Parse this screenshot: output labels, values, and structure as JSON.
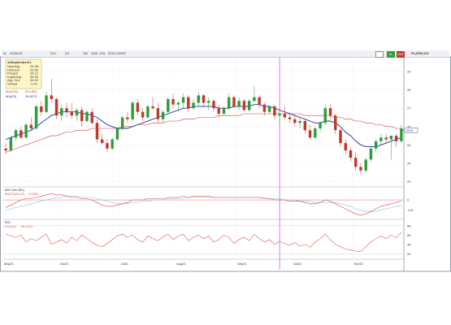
{
  "toolbar": {
    "items": [
      "M",
      "2025V21",
      "DLY",
      "3/1",
      "1/8",
      "10/8",
      "VOL",
      "ROLLOVER"
    ],
    "green_button": "AL",
    "red_button": "GAT",
    "right_label": "PLATIN-KG"
  },
  "info_box": {
    "date": "14September21",
    "rows": [
      {
        "label": "Opening",
        "value": "26.38"
      },
      {
        "label": "Hoheest",
        "value": "26.58"
      },
      {
        "label": "Fingest",
        "value": "26.12"
      },
      {
        "label": "Kapaning",
        "value": "26.30"
      },
      {
        "label": "Afg. Ord.",
        "value": "26.32"
      },
      {
        "label": "Verlust",
        "value": "-0.41"
      }
    ]
  },
  "indicators": {
    "ma_long_label": "MA(150)",
    "ma_long_value": "26.1834",
    "ma_short_label": "MA(23)",
    "ma_short_value": "26.8273",
    "macd_title": "MA Cntx (Bu)",
    "macd_label": "MACD(26,12)",
    "macd_value": "-0.1391",
    "rsi_title": "RSI",
    "rsi_label": "RSI(14)",
    "rsi_value": "60.2431"
  },
  "x_labels": [
    "May21",
    "Jun21",
    "Jul21",
    "Aug21",
    "Sep21",
    "Oct21",
    "Nov21"
  ],
  "y_price_labels": [
    "29",
    "28",
    "27",
    "26",
    "25",
    "24",
    "23"
  ],
  "last_price_label": "25.8",
  "macd_axis_labels": [
    "0",
    "-0.8"
  ],
  "rsi_axis_labels": [
    "80",
    "60",
    "40",
    "20"
  ],
  "colors": {
    "bull": "#2e9e3b",
    "bear": "#c0392b",
    "ma_short": "#1f2b9c",
    "ma_long": "#d23c3c",
    "cursor": "#b24fb8",
    "macd": "#e04848",
    "signal": "#6fd0e6",
    "rsi": "#e04848",
    "grid": "#c9d7c9"
  },
  "chart_data": {
    "type": "candlestick",
    "price_range": [
      22.8,
      29.8
    ],
    "candles": [
      [
        24.8,
        25.1,
        24.5,
        24.7
      ],
      [
        24.7,
        25.5,
        24.6,
        25.4
      ],
      [
        25.4,
        25.9,
        25.2,
        25.8
      ],
      [
        25.8,
        26.0,
        25.3,
        25.4
      ],
      [
        25.4,
        26.2,
        25.3,
        26.1
      ],
      [
        26.1,
        26.5,
        25.8,
        25.9
      ],
      [
        25.9,
        27.2,
        25.8,
        27.1
      ],
      [
        27.1,
        27.4,
        26.6,
        26.8
      ],
      [
        26.8,
        27.9,
        26.7,
        27.7
      ],
      [
        27.7,
        28.6,
        27.3,
        27.5
      ],
      [
        27.5,
        27.6,
        26.4,
        26.6
      ],
      [
        26.6,
        27.2,
        26.3,
        27.0
      ],
      [
        27.0,
        27.3,
        26.5,
        26.8
      ],
      [
        26.8,
        27.3,
        26.4,
        26.6
      ],
      [
        26.6,
        27.0,
        26.3,
        26.9
      ],
      [
        26.9,
        27.1,
        26.0,
        26.3
      ],
      [
        26.3,
        26.9,
        26.2,
        26.8
      ],
      [
        26.8,
        27.0,
        26.1,
        26.2
      ],
      [
        26.2,
        26.4,
        25.1,
        25.3
      ],
      [
        25.3,
        25.6,
        25.0,
        25.1
      ],
      [
        25.1,
        25.3,
        24.6,
        24.8
      ],
      [
        24.8,
        25.4,
        24.7,
        25.3
      ],
      [
        25.3,
        26.0,
        25.2,
        25.9
      ],
      [
        25.9,
        26.6,
        25.8,
        26.5
      ],
      [
        26.5,
        26.8,
        26.2,
        26.4
      ],
      [
        26.4,
        27.4,
        26.3,
        27.3
      ],
      [
        27.3,
        27.5,
        26.6,
        26.8
      ],
      [
        26.8,
        27.0,
        26.3,
        26.5
      ],
      [
        26.5,
        27.2,
        26.4,
        27.1
      ],
      [
        27.1,
        27.6,
        26.9,
        27.0
      ],
      [
        27.0,
        27.3,
        26.2,
        26.4
      ],
      [
        26.4,
        26.9,
        26.2,
        26.8
      ],
      [
        26.8,
        27.6,
        26.7,
        27.5
      ],
      [
        27.5,
        27.8,
        27.0,
        27.2
      ],
      [
        27.2,
        27.4,
        26.8,
        27.3
      ],
      [
        27.3,
        27.8,
        27.0,
        27.6
      ],
      [
        27.6,
        27.7,
        26.8,
        27.0
      ],
      [
        27.0,
        27.5,
        26.9,
        27.3
      ],
      [
        27.3,
        27.9,
        27.1,
        27.7
      ],
      [
        27.7,
        27.8,
        27.1,
        27.3
      ],
      [
        27.3,
        27.6,
        26.9,
        27.4
      ],
      [
        27.4,
        27.5,
        26.8,
        27.0
      ],
      [
        27.0,
        27.2,
        26.5,
        26.7
      ],
      [
        26.7,
        27.1,
        26.6,
        27.0
      ],
      [
        27.0,
        27.8,
        26.9,
        27.6
      ],
      [
        27.6,
        27.7,
        27.0,
        27.1
      ],
      [
        27.1,
        27.6,
        26.9,
        27.4
      ],
      [
        27.4,
        27.5,
        26.8,
        26.9
      ],
      [
        26.9,
        27.5,
        26.8,
        27.4
      ],
      [
        27.4,
        28.2,
        27.3,
        27.6
      ],
      [
        27.6,
        27.7,
        27.0,
        27.2
      ],
      [
        27.2,
        27.3,
        26.6,
        26.8
      ],
      [
        26.8,
        27.2,
        26.7,
        27.1
      ],
      [
        27.1,
        27.2,
        26.4,
        26.6
      ],
      [
        26.6,
        26.9,
        26.2,
        26.7
      ],
      [
        26.7,
        27.1,
        26.4,
        26.5
      ],
      [
        26.5,
        26.8,
        26.2,
        26.4
      ],
      [
        26.4,
        26.6,
        26.0,
        26.2
      ],
      [
        26.2,
        26.5,
        25.9,
        26.3
      ],
      [
        26.3,
        26.4,
        25.6,
        25.8
      ],
      [
        25.8,
        26.1,
        25.3,
        25.4
      ],
      [
        25.4,
        26.0,
        25.3,
        25.9
      ],
      [
        25.9,
        26.3,
        25.7,
        26.2
      ],
      [
        26.2,
        27.2,
        26.1,
        27.0
      ],
      [
        27.0,
        27.2,
        26.4,
        26.6
      ],
      [
        26.6,
        26.7,
        25.6,
        25.8
      ],
      [
        25.8,
        25.9,
        24.9,
        25.1
      ],
      [
        25.1,
        25.3,
        24.5,
        24.7
      ],
      [
        24.7,
        24.9,
        24.1,
        24.3
      ],
      [
        24.3,
        24.6,
        23.6,
        23.8
      ],
      [
        23.8,
        24.0,
        23.4,
        23.6
      ],
      [
        23.6,
        24.3,
        23.5,
        24.2
      ],
      [
        24.2,
        24.9,
        24.1,
        24.8
      ],
      [
        24.8,
        25.3,
        24.6,
        25.2
      ],
      [
        25.2,
        25.6,
        25.0,
        25.4
      ],
      [
        25.4,
        25.6,
        25.1,
        25.3
      ],
      [
        25.3,
        25.5,
        24.2,
        25.5
      ],
      [
        25.5,
        25.6,
        24.9,
        25.2
      ],
      [
        25.2,
        26.1,
        25.1,
        25.9
      ]
    ],
    "ma_short": [
      25.3,
      25.4,
      25.5,
      25.6,
      25.7,
      25.8,
      26.0,
      26.2,
      26.4,
      26.6,
      26.7,
      26.8,
      26.8,
      26.8,
      26.8,
      26.7,
      26.7,
      26.6,
      26.5,
      26.3,
      26.1,
      26.0,
      25.9,
      25.9,
      25.9,
      26.0,
      26.1,
      26.2,
      26.3,
      26.4,
      26.5,
      26.6,
      26.7,
      26.8,
      26.9,
      27.0,
      27.0,
      27.1,
      27.1,
      27.1,
      27.1,
      27.1,
      27.0,
      27.0,
      27.0,
      27.1,
      27.1,
      27.1,
      27.1,
      27.2,
      27.2,
      27.1,
      27.1,
      27.0,
      26.9,
      26.8,
      26.7,
      26.6,
      26.5,
      26.4,
      26.3,
      26.2,
      26.2,
      26.3,
      26.3,
      26.2,
      26.0,
      25.7,
      25.5,
      25.2,
      25.0,
      24.9,
      24.9,
      24.9,
      25.0,
      25.1,
      25.2,
      25.3,
      25.4
    ],
    "ma_long": [
      24.6,
      24.7,
      24.8,
      24.9,
      25.0,
      25.1,
      25.2,
      25.3,
      25.4,
      25.5,
      25.5,
      25.6,
      25.7,
      25.7,
      25.8,
      25.8,
      25.8,
      25.9,
      25.9,
      25.9,
      25.9,
      25.9,
      25.9,
      26.0,
      26.0,
      26.0,
      26.1,
      26.1,
      26.1,
      26.2,
      26.2,
      26.2,
      26.3,
      26.3,
      26.3,
      26.4,
      26.4,
      26.4,
      26.5,
      26.5,
      26.5,
      26.5,
      26.6,
      26.6,
      26.6,
      26.6,
      26.6,
      26.7,
      26.7,
      26.7,
      26.7,
      26.7,
      26.7,
      26.7,
      26.7,
      26.7,
      26.7,
      26.7,
      26.7,
      26.6,
      26.6,
      26.6,
      26.6,
      26.6,
      26.6,
      26.5,
      26.5,
      26.4,
      26.4,
      26.3,
      26.3,
      26.2,
      26.2,
      26.1,
      26.1,
      26.0,
      26.0,
      25.9,
      25.9
    ],
    "macd": [
      -0.6,
      -0.4,
      -0.2,
      0.0,
      0.1,
      0.1,
      0.2,
      0.3,
      0.4,
      0.5,
      0.4,
      0.4,
      0.3,
      0.2,
      0.2,
      0.1,
      0.1,
      0.0,
      -0.2,
      -0.4,
      -0.5,
      -0.5,
      -0.4,
      -0.3,
      -0.2,
      0.0,
      0.0,
      0.0,
      0.1,
      0.1,
      0.1,
      0.1,
      0.2,
      0.2,
      0.2,
      0.3,
      0.2,
      0.3,
      0.3,
      0.3,
      0.3,
      0.2,
      0.2,
      0.2,
      0.2,
      0.2,
      0.2,
      0.2,
      0.2,
      0.2,
      0.2,
      0.1,
      0.1,
      0.0,
      0.0,
      0.0,
      -0.1,
      -0.1,
      -0.1,
      -0.2,
      -0.3,
      -0.3,
      -0.2,
      0.0,
      -0.1,
      -0.3,
      -0.5,
      -0.7,
      -0.9,
      -1.1,
      -1.2,
      -1.1,
      -0.9,
      -0.7,
      -0.5,
      -0.4,
      -0.3,
      -0.2,
      -0.1
    ],
    "signal": [
      -0.8,
      -0.7,
      -0.6,
      -0.5,
      -0.4,
      -0.3,
      -0.2,
      -0.1,
      0.0,
      0.1,
      0.2,
      0.2,
      0.3,
      0.3,
      0.3,
      0.2,
      0.2,
      0.2,
      0.1,
      0.0,
      -0.1,
      -0.2,
      -0.3,
      -0.3,
      -0.3,
      -0.2,
      -0.2,
      -0.1,
      -0.1,
      0.0,
      0.0,
      0.0,
      0.1,
      0.1,
      0.1,
      0.1,
      0.2,
      0.2,
      0.2,
      0.2,
      0.2,
      0.2,
      0.2,
      0.2,
      0.2,
      0.2,
      0.2,
      0.2,
      0.2,
      0.2,
      0.2,
      0.2,
      0.1,
      0.1,
      0.1,
      0.0,
      0.0,
      0.0,
      -0.1,
      -0.1,
      -0.1,
      -0.2,
      -0.2,
      -0.2,
      -0.2,
      -0.2,
      -0.3,
      -0.4,
      -0.5,
      -0.7,
      -0.8,
      -0.9,
      -0.9,
      -0.9,
      -0.8,
      -0.7,
      -0.6,
      -0.5,
      -0.4
    ],
    "macd_range": [
      -1.4,
      0.9
    ],
    "rsi": [
      62,
      58,
      55,
      60,
      45,
      52,
      48,
      55,
      62,
      40,
      45,
      50,
      43,
      55,
      48,
      60,
      52,
      44,
      38,
      35,
      42,
      50,
      58,
      62,
      55,
      60,
      50,
      45,
      58,
      52,
      48,
      56,
      62,
      50,
      58,
      62,
      48,
      55,
      60,
      52,
      58,
      45,
      50,
      60,
      55,
      42,
      50,
      56,
      48,
      62,
      52,
      45,
      50,
      40,
      46,
      42,
      38,
      44,
      36,
      40,
      34,
      45,
      52,
      62,
      50,
      40,
      35,
      30,
      28,
      25,
      24,
      35,
      45,
      52,
      58,
      52,
      60,
      54,
      66
    ],
    "rsi_range": [
      10,
      90
    ],
    "cursor_index": 54,
    "last_price": 25.8
  }
}
